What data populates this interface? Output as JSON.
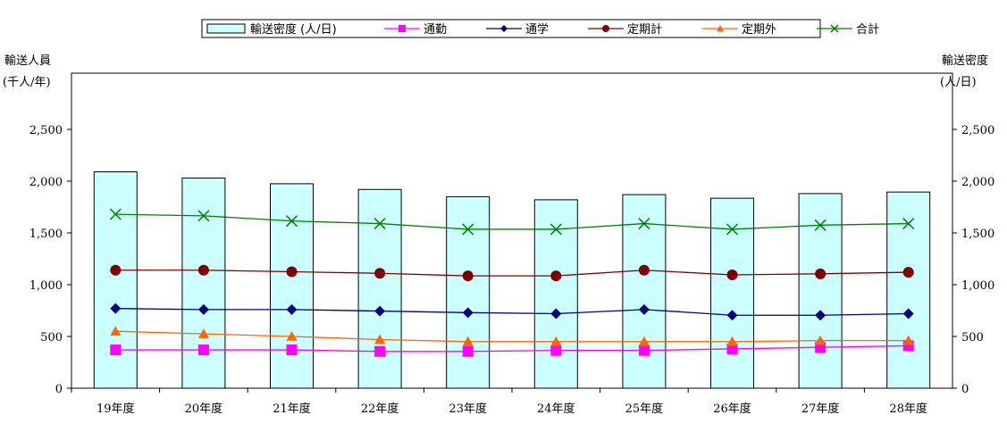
{
  "chart_data": {
    "type": "bar+line",
    "categories": [
      "19年度",
      "20年度",
      "21年度",
      "22年度",
      "23年度",
      "24年度",
      "25年度",
      "26年度",
      "27年度",
      "28年度"
    ],
    "bar_series": {
      "name": "輸送密度 (人/日)",
      "axis": "right",
      "color": "#ccffff",
      "values": [
        2090,
        2030,
        1975,
        1920,
        1850,
        1820,
        1870,
        1835,
        1880,
        1895
      ]
    },
    "line_series": [
      {
        "name": "通勤",
        "color": "#ff00ff",
        "marker": "square",
        "values": [
          370,
          370,
          370,
          355,
          355,
          365,
          365,
          380,
          395,
          410
        ]
      },
      {
        "name": "通学",
        "color": "#000080",
        "marker": "diamond",
        "values": [
          770,
          760,
          760,
          745,
          730,
          720,
          760,
          705,
          705,
          720
        ]
      },
      {
        "name": "定期計",
        "color": "#800000",
        "marker": "circle",
        "values": [
          1140,
          1140,
          1125,
          1110,
          1085,
          1085,
          1140,
          1095,
          1105,
          1120
        ]
      },
      {
        "name": "定期外",
        "color": "#ff6600",
        "marker": "triangle",
        "values": [
          550,
          525,
          500,
          470,
          450,
          450,
          450,
          450,
          460,
          460
        ]
      },
      {
        "name": "合計",
        "color": "#008000",
        "marker": "x",
        "values": [
          1680,
          1665,
          1615,
          1590,
          1535,
          1535,
          1590,
          1535,
          1575,
          1590
        ]
      }
    ],
    "left_axis": {
      "label_line1": "輸送人員",
      "label_line2": "(千人/年)",
      "ylim": [
        0,
        2500
      ],
      "ticks": [
        "0",
        "500",
        "1,000",
        "1,500",
        "2,000",
        "2,500"
      ]
    },
    "right_axis": {
      "label_line1": "輸送密度",
      "label_line2": "(人/日)",
      "ylim": [
        0,
        2500
      ],
      "ticks": [
        "0",
        "500",
        "1,000",
        "1,500",
        "2,000",
        "2,500"
      ]
    },
    "legend_position": "top-center",
    "grid": false
  }
}
